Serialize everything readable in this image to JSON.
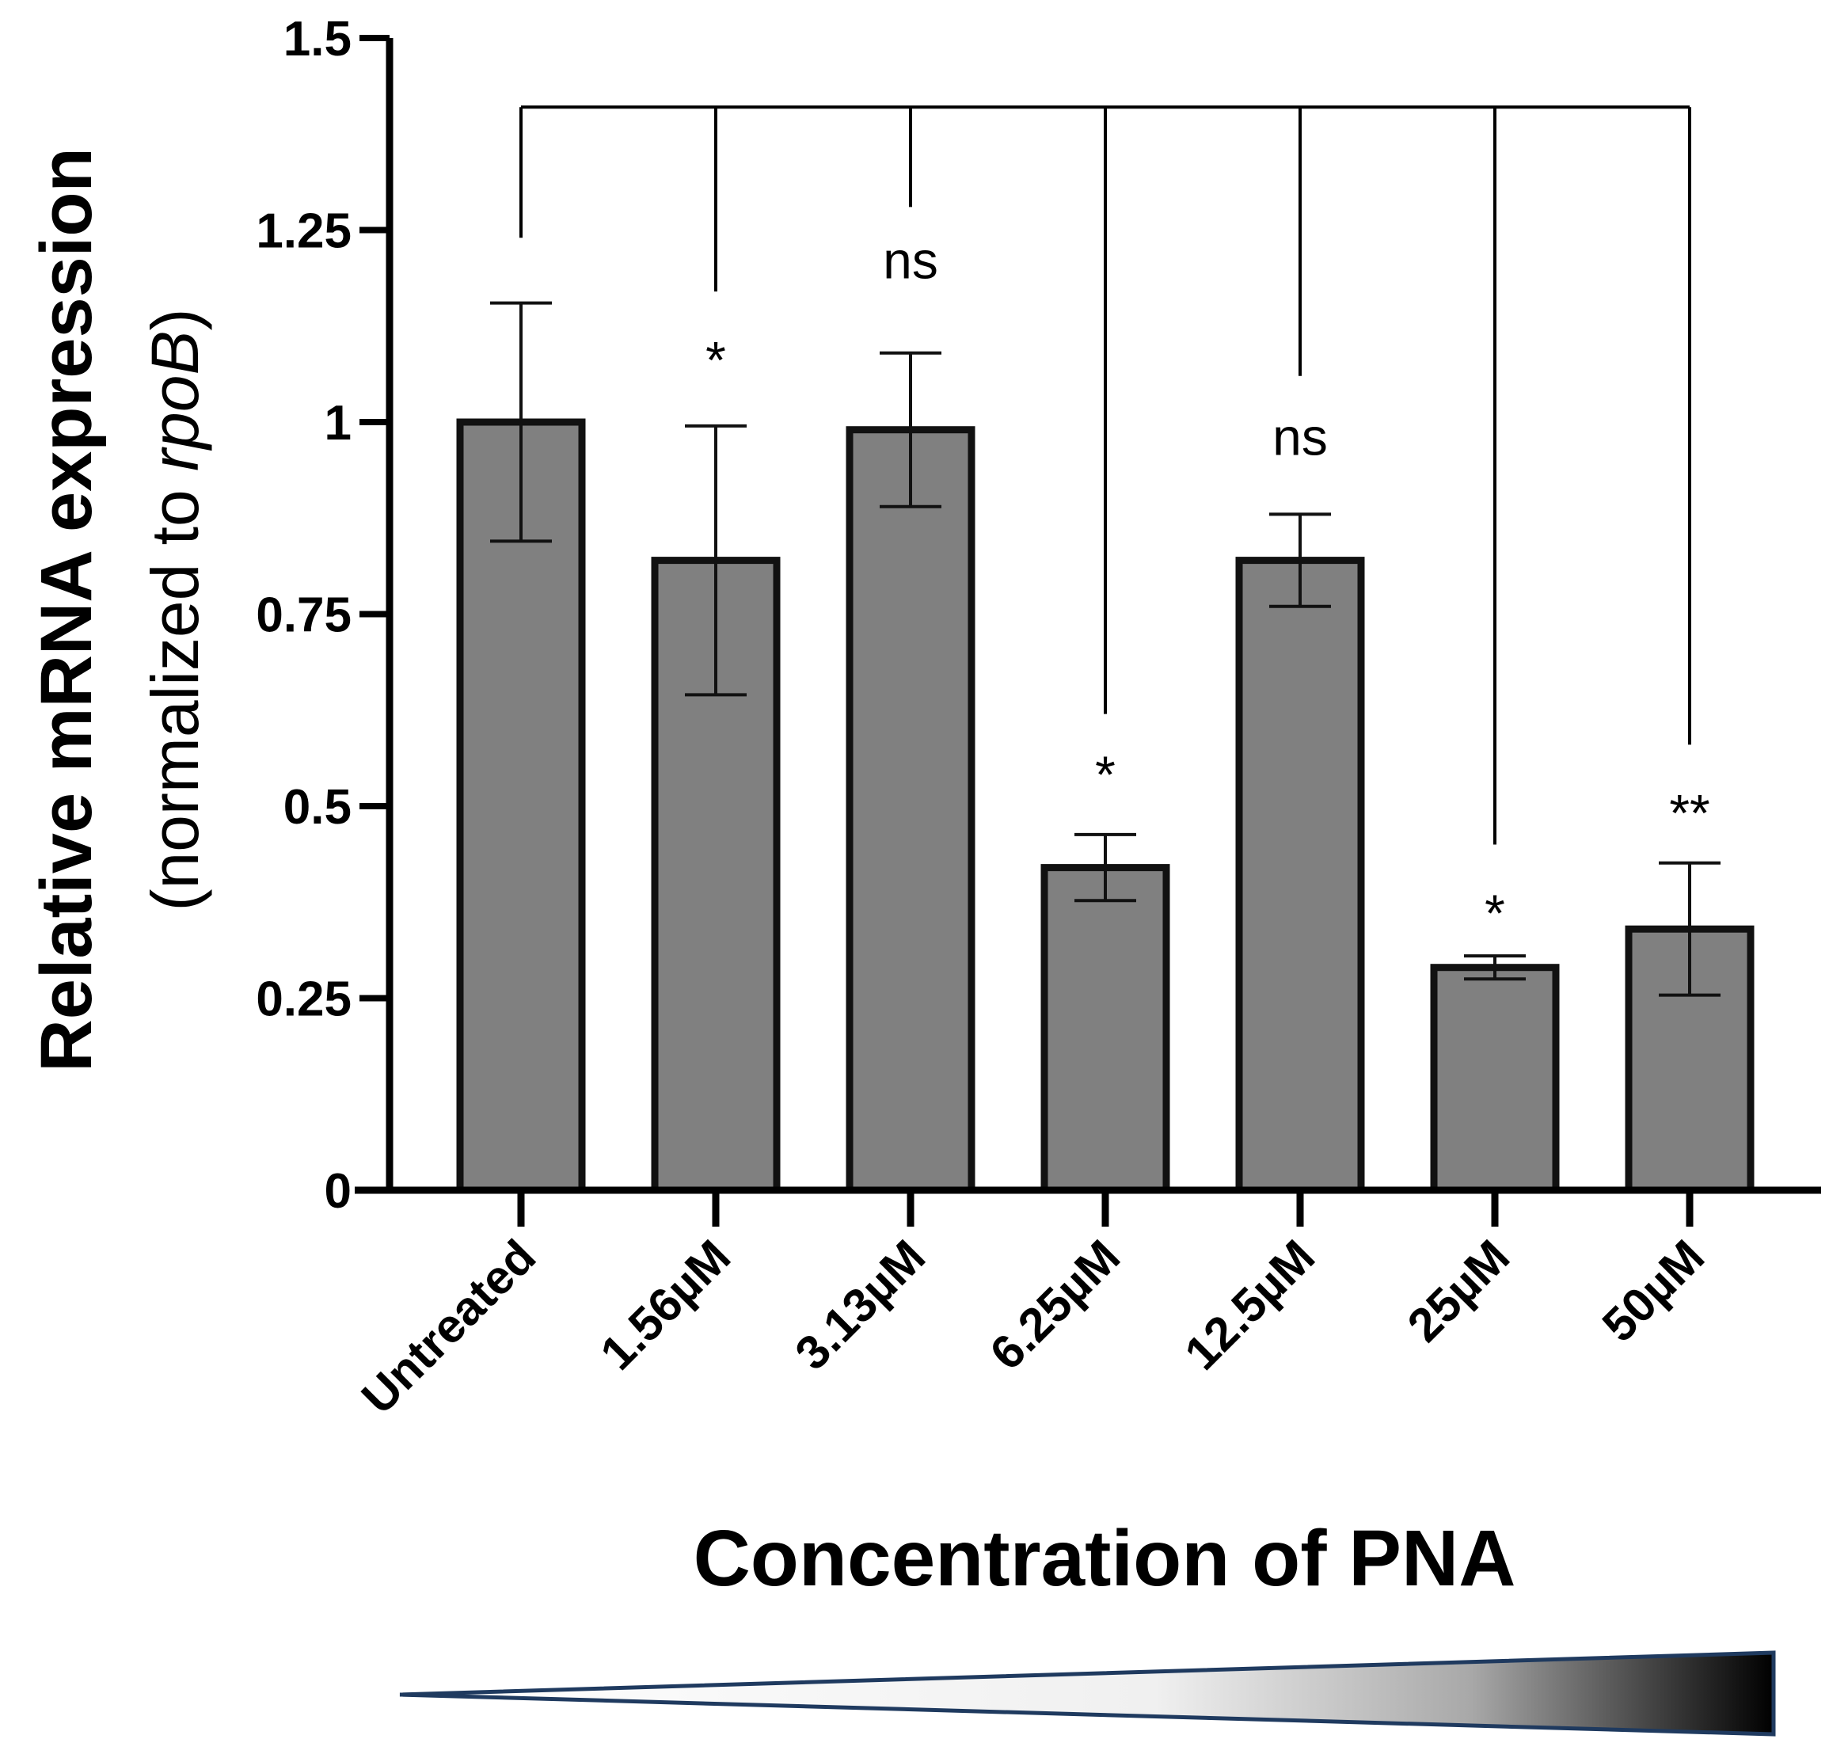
{
  "chart_data": {
    "type": "bar",
    "title": "",
    "xlabel": "Concentration of PNA",
    "ylabel": "Relative mRNA expression",
    "ylabel_sub_prefix": "(normalized to ",
    "ylabel_sub_italic": "rpoB",
    "ylabel_sub_suffix": ")",
    "ylim": [
      0,
      1.5
    ],
    "yticks": [
      {
        "value": 0,
        "label": "0"
      },
      {
        "value": 0.25,
        "label": "0.25"
      },
      {
        "value": 0.5,
        "label": "0.5"
      },
      {
        "value": 0.75,
        "label": "0.75"
      },
      {
        "value": 1,
        "label": "1"
      },
      {
        "value": 1.25,
        "label": "1.25"
      },
      {
        "value": 1.5,
        "label": "1.5"
      }
    ],
    "categories": [
      "Untreated",
      "1.56µM",
      "3.13µM",
      "6.25µM",
      "12.5µM",
      "25µM",
      "50µM"
    ],
    "values": [
      1.0,
      0.82,
      0.99,
      0.42,
      0.82,
      0.29,
      0.34
    ],
    "errors": [
      0.155,
      0.175,
      0.1,
      0.043,
      0.06,
      0.015,
      0.086
    ],
    "bar_color": "#808080",
    "edge_color": "#111111",
    "comparison_bracket": {
      "level": 1.41,
      "reference": "Untreated",
      "reference_drop_to": 1.24
    },
    "significance": [
      {
        "category": "1.56µM",
        "label": "*",
        "line_end": 1.17,
        "label_value": 1.08
      },
      {
        "category": "3.13µM",
        "label": "ns",
        "line_end": 1.28,
        "label_value": 1.21
      },
      {
        "category": "6.25µM",
        "label": "*",
        "line_end": 0.62,
        "label_value": 0.54
      },
      {
        "category": "12.5µM",
        "label": "ns",
        "line_end": 1.06,
        "label_value": 0.98
      },
      {
        "category": "25µM",
        "label": "*",
        "line_end": 0.45,
        "label_value": 0.36
      },
      {
        "category": "50µM",
        "label": "**",
        "line_end": 0.58,
        "label_value": 0.49
      }
    ],
    "gradient_legend": {
      "description": "increasing concentration",
      "color_start": "#ffffff",
      "color_end": "#000000",
      "border_color": "#1f3a5f"
    }
  }
}
